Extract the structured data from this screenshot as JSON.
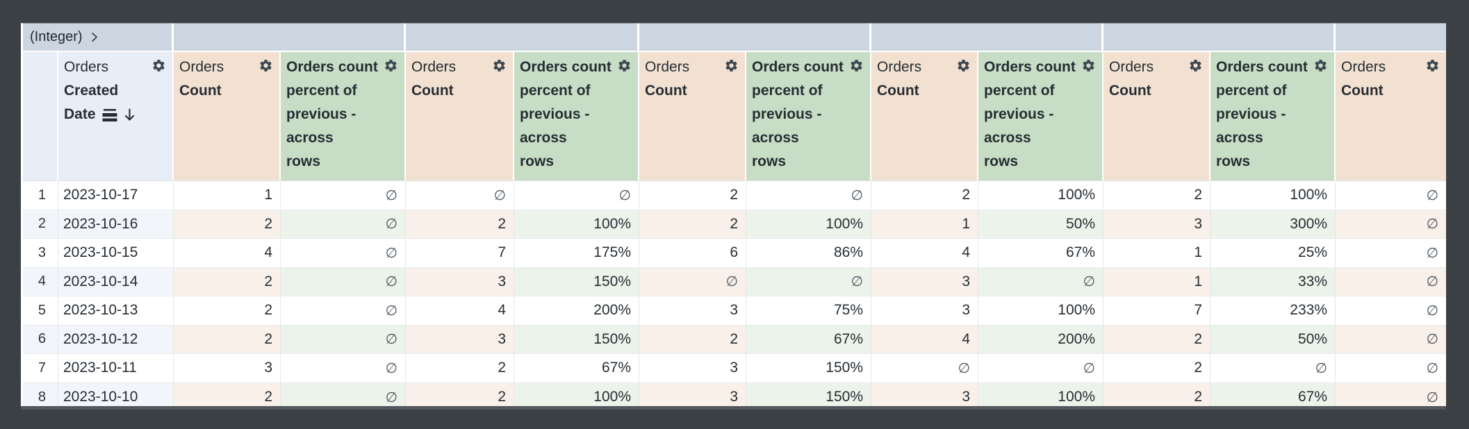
{
  "pivot": {
    "field_type_label": "(Integer)",
    "expand_icon": "chevron-right",
    "group_count": 6
  },
  "row_field": {
    "view": "Orders",
    "field": "Created Date",
    "field_line1": "Created",
    "field_line2": "Date",
    "sort_direction": "desc",
    "icons": [
      "subtotals-icon",
      "sort-desc-arrow-icon",
      "gear-icon"
    ]
  },
  "header_labels": {
    "count": [
      {
        "text": "Orders",
        "bold": false
      },
      {
        "text": "Count",
        "bold": true
      }
    ],
    "percent": [
      {
        "text": "Orders count",
        "bold": true
      },
      {
        "text": "percent of",
        "bold": true
      },
      {
        "text": "previous -",
        "bold": true
      },
      {
        "text": "across",
        "bold": true
      },
      {
        "text": "rows",
        "bold": true
      }
    ]
  },
  "columns": [
    "count",
    "percent",
    "count",
    "percent",
    "count",
    "percent",
    "count",
    "percent",
    "count",
    "percent",
    "count"
  ],
  "null_symbol": "∅",
  "rows": [
    {
      "num": "1",
      "date": "2023-10-17",
      "values": [
        "1",
        "∅",
        "∅",
        "∅",
        "2",
        "∅",
        "2",
        "100%",
        "2",
        "100%",
        "∅"
      ]
    },
    {
      "num": "2",
      "date": "2023-10-16",
      "values": [
        "2",
        "∅",
        "2",
        "100%",
        "2",
        "100%",
        "1",
        "50%",
        "3",
        "300%",
        "∅"
      ]
    },
    {
      "num": "3",
      "date": "2023-10-15",
      "values": [
        "4",
        "∅",
        "7",
        "175%",
        "6",
        "86%",
        "4",
        "67%",
        "1",
        "25%",
        "∅"
      ]
    },
    {
      "num": "4",
      "date": "2023-10-14",
      "values": [
        "2",
        "∅",
        "3",
        "150%",
        "∅",
        "∅",
        "3",
        "∅",
        "1",
        "33%",
        "∅"
      ]
    },
    {
      "num": "5",
      "date": "2023-10-13",
      "values": [
        "2",
        "∅",
        "4",
        "200%",
        "3",
        "75%",
        "3",
        "100%",
        "7",
        "233%",
        "∅"
      ]
    },
    {
      "num": "6",
      "date": "2023-10-12",
      "values": [
        "2",
        "∅",
        "3",
        "150%",
        "2",
        "67%",
        "4",
        "200%",
        "2",
        "50%",
        "∅"
      ]
    },
    {
      "num": "7",
      "date": "2023-10-11",
      "values": [
        "3",
        "∅",
        "2",
        "67%",
        "3",
        "150%",
        "∅",
        "∅",
        "2",
        "∅",
        "∅"
      ]
    },
    {
      "num": "8",
      "date": "2023-10-10",
      "values": [
        "2",
        "∅",
        "2",
        "100%",
        "3",
        "150%",
        "3",
        "100%",
        "2",
        "67%",
        "∅"
      ]
    }
  ],
  "colors": {
    "backdrop": "#3b4044",
    "pivot_band": "#ccd6e1",
    "row_header_bg": "#e8eef5",
    "count_header_bg": "#f2e1d1",
    "percent_header_bg": "#c8ddc5",
    "alt_row_blue": "#f2f6fa",
    "alt_row_tan": "#f8f0e9",
    "alt_row_green": "#ebf3eb",
    "text": "#262d33",
    "null_text": "#4b555f"
  }
}
